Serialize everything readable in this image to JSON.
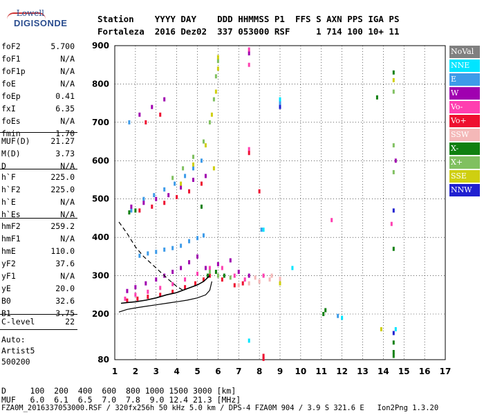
{
  "logo": {
    "line1": "Lowell",
    "line2": "DIGISONDE"
  },
  "header": {
    "labels": "Station    YYYY DAY    DDD HHMMSS P1  FFS S AXN PPS IGA PS",
    "values": "Fortaleza  2016 Dez02  337 053000 RSF     1 714 100 10+ 11"
  },
  "params_group1": [
    {
      "name": "foF2",
      "value": "5.700"
    },
    {
      "name": "foF1",
      "value": "N/A"
    },
    {
      "name": "foF1p",
      "value": "N/A"
    },
    {
      "name": "foE",
      "value": "N/A"
    },
    {
      "name": "foEp",
      "value": "0.41"
    },
    {
      "name": "fxI",
      "value": "6.35"
    },
    {
      "name": "foEs",
      "value": "N/A"
    },
    {
      "name": "fmin",
      "value": "1.70"
    }
  ],
  "params_group2": [
    {
      "name": "MUF(D)",
      "value": "21.27"
    },
    {
      "name": "M(D)",
      "value": "3.73"
    },
    {
      "name": "D",
      "value": "N/A"
    }
  ],
  "params_group3": [
    {
      "name": "h`F",
      "value": "225.0"
    },
    {
      "name": "h`F2",
      "value": "225.0"
    },
    {
      "name": "h`E",
      "value": "N/A"
    },
    {
      "name": "h`Es",
      "value": "N/A"
    }
  ],
  "params_group4": [
    {
      "name": "hmF2",
      "value": "259.2"
    },
    {
      "name": "hmF1",
      "value": "N/A"
    },
    {
      "name": "hmE",
      "value": "110.0"
    },
    {
      "name": "yF2",
      "value": "37.6"
    },
    {
      "name": "yF1",
      "value": "N/A"
    },
    {
      "name": "yE",
      "value": "20.0"
    },
    {
      "name": "B0",
      "value": "32.6"
    },
    {
      "name": "B1",
      "value": "3.75"
    }
  ],
  "params_group5": [
    {
      "name": "C-level",
      "value": "22"
    }
  ],
  "auto": {
    "line1": "Auto:",
    "line2": "Artist5",
    "line3": "500200"
  },
  "legend": [
    {
      "label": "NoVal",
      "color": "#808080"
    },
    {
      "label": "NNE",
      "color": "#00e5ff"
    },
    {
      "label": "E",
      "color": "#3d9be9"
    },
    {
      "label": "W",
      "color": "#a000b0"
    },
    {
      "label": "Vo-",
      "color": "#ff3fb0"
    },
    {
      "label": "Vo+",
      "color": "#ee1030"
    },
    {
      "label": "SSW",
      "color": "#f4b8b8"
    },
    {
      "label": "X-",
      "color": "#108010"
    },
    {
      "label": "X+",
      "color": "#80c060"
    },
    {
      "label": "SSE",
      "color": "#cfcf10"
    },
    {
      "label": "NNW",
      "color": "#2020d0"
    }
  ],
  "table": {
    "row1": "D     100  200  400  600  800 1000 1500 3000 [km]",
    "row2": "MUF   6.0  6.1  6.5  7.0  7.8  9.0 12.4 21.3 [MHz]"
  },
  "footer": "FZA0M_2016337053000.RSF / 320fx256h 50 kHz 5.0 km / DPS-4 FZA0M 904 / 3.9 S 321.6 E   Ion2Png 1.3.20",
  "chart_data": {
    "type": "scatter",
    "x_ticks": [
      1,
      2,
      3,
      4,
      5,
      6,
      7,
      8,
      9,
      10,
      11,
      12,
      13,
      14,
      15,
      16,
      17
    ],
    "y_ticks": [
      80,
      200,
      300,
      400,
      500,
      600,
      700,
      800,
      900
    ],
    "xlim": [
      1,
      17
    ],
    "ylim": [
      80,
      900
    ],
    "grid": true,
    "series": [
      {
        "name": "E",
        "color": "#3d9be9",
        "points": [
          [
            2.2,
            352
          ],
          [
            2.6,
            358
          ],
          [
            3.0,
            362
          ],
          [
            3.4,
            368
          ],
          [
            3.8,
            372
          ],
          [
            4.2,
            378
          ],
          [
            4.6,
            390
          ],
          [
            5.0,
            398
          ],
          [
            5.3,
            405
          ],
          [
            2.4,
            500
          ],
          [
            2.9,
            510
          ],
          [
            3.4,
            525
          ],
          [
            3.9,
            540
          ],
          [
            4.4,
            560
          ],
          [
            4.8,
            580
          ],
          [
            5.2,
            600
          ],
          [
            1.8,
            470
          ],
          [
            1.7,
            700
          ],
          [
            9.0,
            750
          ],
          [
            8.1,
            420
          ],
          [
            11.8,
            195
          ]
        ]
      },
      {
        "name": "W",
        "color": "#a000b0",
        "points": [
          [
            1.6,
            260
          ],
          [
            2.0,
            270
          ],
          [
            2.5,
            280
          ],
          [
            3.0,
            290
          ],
          [
            3.4,
            300
          ],
          [
            3.8,
            310
          ],
          [
            4.2,
            320
          ],
          [
            4.6,
            335
          ],
          [
            5.0,
            350
          ],
          [
            5.4,
            320
          ],
          [
            6.0,
            330
          ],
          [
            6.6,
            340
          ],
          [
            7.0,
            310
          ],
          [
            7.5,
            300
          ],
          [
            1.8,
            480
          ],
          [
            2.4,
            490
          ],
          [
            3.0,
            500
          ],
          [
            3.6,
            510
          ],
          [
            4.2,
            530
          ],
          [
            4.8,
            550
          ],
          [
            5.4,
            560
          ],
          [
            2.2,
            720
          ],
          [
            2.8,
            740
          ],
          [
            3.4,
            760
          ],
          [
            7.5,
            880
          ],
          [
            14.6,
            600
          ]
        ]
      },
      {
        "name": "Vo-",
        "color": "#ff3fb0",
        "points": [
          [
            1.5,
            240
          ],
          [
            2.0,
            250
          ],
          [
            2.6,
            258
          ],
          [
            3.2,
            268
          ],
          [
            3.8,
            278
          ],
          [
            4.4,
            290
          ],
          [
            5.0,
            305
          ],
          [
            5.6,
            320
          ],
          [
            6.2,
            320
          ],
          [
            6.8,
            300
          ],
          [
            7.3,
            290
          ],
          [
            7.5,
            890
          ],
          [
            7.5,
            850
          ],
          [
            7.5,
            630
          ],
          [
            8.2,
            300
          ],
          [
            11.5,
            445
          ],
          [
            14.4,
            435
          ]
        ]
      },
      {
        "name": "Vo+",
        "color": "#ee1030",
        "points": [
          [
            1.6,
            235
          ],
          [
            2.1,
            240
          ],
          [
            2.6,
            245
          ],
          [
            3.2,
            250
          ],
          [
            3.8,
            258
          ],
          [
            4.4,
            270
          ],
          [
            4.9,
            280
          ],
          [
            5.3,
            290
          ],
          [
            5.6,
            300
          ],
          [
            6.2,
            290
          ],
          [
            6.8,
            275
          ],
          [
            7.2,
            280
          ],
          [
            2.2,
            470
          ],
          [
            2.8,
            480
          ],
          [
            3.4,
            490
          ],
          [
            4.0,
            505
          ],
          [
            4.6,
            520
          ],
          [
            5.2,
            540
          ],
          [
            2.5,
            700
          ],
          [
            3.2,
            720
          ],
          [
            7.5,
            620
          ],
          [
            8.0,
            520
          ],
          [
            8.2,
            90
          ],
          [
            8.2,
            82
          ]
        ]
      },
      {
        "name": "SSW",
        "color": "#f4b8b8",
        "points": [
          [
            7.0,
            275
          ],
          [
            7.5,
            280
          ],
          [
            8.0,
            285
          ],
          [
            8.5,
            290
          ],
          [
            9.0,
            292
          ],
          [
            7.8,
            295
          ],
          [
            8.6,
            300
          ]
        ]
      },
      {
        "name": "X-",
        "color": "#108010",
        "points": [
          [
            1.7,
            465
          ],
          [
            2.0,
            470
          ],
          [
            5.2,
            480
          ],
          [
            5.5,
            300
          ],
          [
            5.9,
            310
          ],
          [
            6.3,
            300
          ],
          [
            11.2,
            210
          ],
          [
            11.1,
            200
          ],
          [
            13.7,
            765
          ],
          [
            14.5,
            830
          ],
          [
            14.5,
            370
          ],
          [
            14.5,
            125
          ],
          [
            14.5,
            100
          ],
          [
            14.5,
            90
          ]
        ]
      },
      {
        "name": "X+",
        "color": "#80c060",
        "points": [
          [
            3.8,
            555
          ],
          [
            4.3,
            580
          ],
          [
            4.8,
            610
          ],
          [
            5.3,
            650
          ],
          [
            5.6,
            700
          ],
          [
            5.8,
            760
          ],
          [
            5.9,
            820
          ],
          [
            6.0,
            860
          ],
          [
            5.6,
            310
          ],
          [
            6.0,
            300
          ],
          [
            6.6,
            295
          ],
          [
            14.5,
            640
          ],
          [
            14.5,
            570
          ],
          [
            14.5,
            780
          ]
        ]
      },
      {
        "name": "SSE",
        "color": "#cfcf10",
        "points": [
          [
            4.2,
            540
          ],
          [
            4.8,
            590
          ],
          [
            5.4,
            640
          ],
          [
            5.7,
            720
          ],
          [
            5.9,
            780
          ],
          [
            6.0,
            840
          ],
          [
            6.0,
            870
          ],
          [
            5.8,
            580
          ],
          [
            13.9,
            160
          ],
          [
            14.5,
            810
          ],
          [
            9.0,
            280
          ]
        ]
      },
      {
        "name": "NNE",
        "color": "#00e5ff",
        "points": [
          [
            7.5,
            130
          ],
          [
            8.2,
            420
          ],
          [
            9.0,
            760
          ],
          [
            9.6,
            320
          ],
          [
            12.0,
            190
          ],
          [
            14.6,
            160
          ]
        ]
      },
      {
        "name": "NNW",
        "color": "#2020d0",
        "points": [
          [
            9.0,
            740
          ],
          [
            14.5,
            470
          ],
          [
            14.5,
            150
          ]
        ]
      }
    ],
    "profile_line": [
      [
        1.2,
        205
      ],
      [
        1.6,
        212
      ],
      [
        2.0,
        216
      ],
      [
        2.5,
        220
      ],
      [
        3.0,
        224
      ],
      [
        3.5,
        228
      ],
      [
        4.0,
        232
      ],
      [
        4.5,
        236
      ],
      [
        5.0,
        242
      ],
      [
        5.4,
        250
      ],
      [
        5.6,
        262
      ],
      [
        5.7,
        285
      ]
    ],
    "trace_line": [
      [
        1.3,
        228
      ],
      [
        1.6,
        230
      ],
      [
        2.0,
        232
      ],
      [
        2.5,
        236
      ],
      [
        3.0,
        242
      ],
      [
        3.5,
        250
      ],
      [
        4.0,
        256
      ],
      [
        4.5,
        266
      ],
      [
        5.0,
        276
      ],
      [
        5.3,
        285
      ],
      [
        5.6,
        300
      ]
    ],
    "dashed_line": [
      [
        1.2,
        440
      ],
      [
        1.6,
        410
      ],
      [
        2.0,
        375
      ],
      [
        2.4,
        350
      ],
      [
        2.8,
        330
      ],
      [
        3.2,
        310
      ],
      [
        3.6,
        290
      ],
      [
        4.0,
        272
      ],
      [
        4.3,
        262
      ]
    ]
  }
}
